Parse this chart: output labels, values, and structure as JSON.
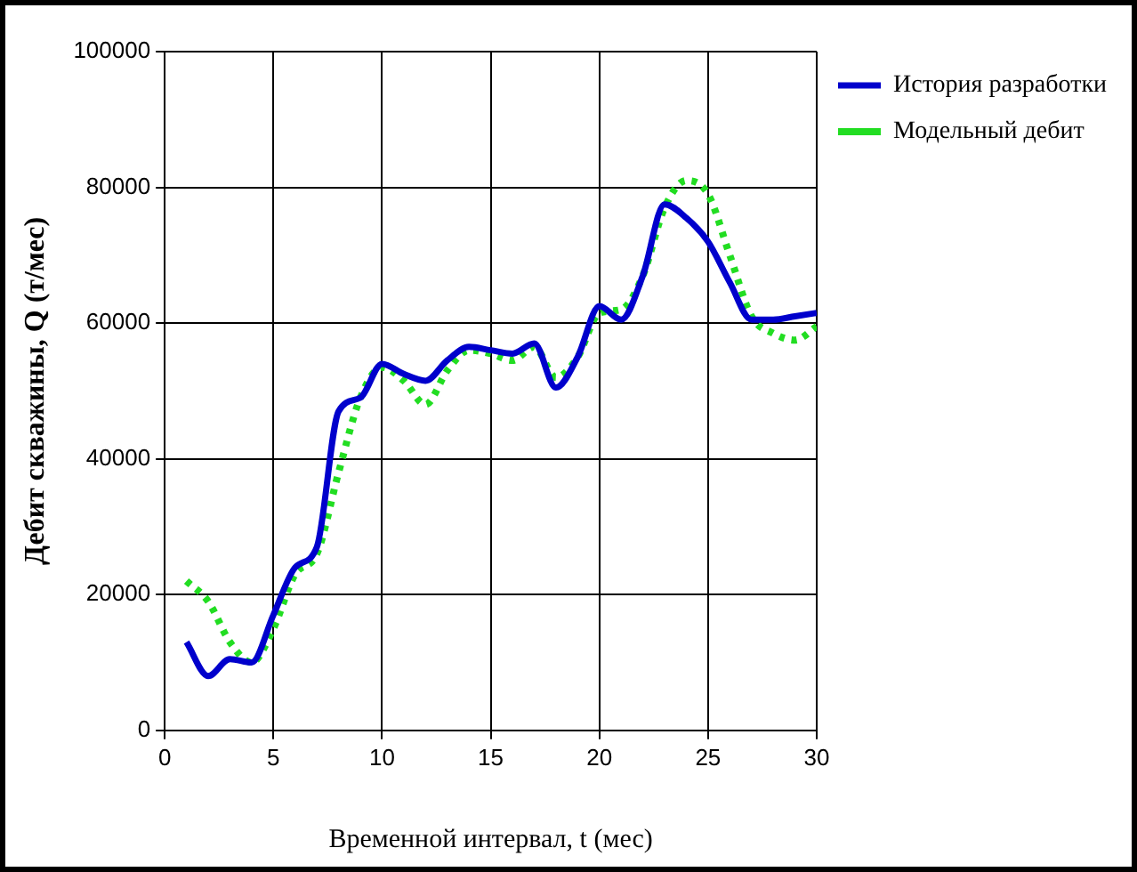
{
  "chart_data": {
    "type": "line",
    "xlabel": "Временной интервал, t (мес)",
    "ylabel": "Дебит скважины, Q (т/мес)",
    "x": [
      1,
      2,
      3,
      4,
      5,
      6,
      7,
      8,
      9,
      10,
      11,
      12,
      13,
      14,
      15,
      16,
      17,
      18,
      19,
      20,
      21,
      22,
      23,
      24,
      25,
      26,
      27,
      28,
      29,
      30
    ],
    "series": [
      {
        "name": "История разработки",
        "color": "#0000cc",
        "line_style": "solid",
        "values": [
          13000,
          8000,
          10500,
          10000,
          17000,
          24000,
          27000,
          47000,
          49000,
          54000,
          52500,
          51500,
          54500,
          56500,
          56000,
          55500,
          57000,
          50500,
          55000,
          62500,
          60500,
          67000,
          77500,
          75500,
          72000,
          66000,
          60500,
          60500,
          61000,
          61500
        ]
      },
      {
        "name": "Модельный дебит",
        "color": "#22dd22",
        "line_style": "dotted",
        "values": [
          22000,
          19000,
          13000,
          10000,
          15000,
          23000,
          26000,
          38000,
          49000,
          53500,
          51500,
          48000,
          53000,
          56000,
          55500,
          54500,
          56500,
          52000,
          55000,
          61500,
          62000,
          67000,
          77000,
          81000,
          79000,
          70000,
          61000,
          58500,
          57500,
          59500
        ]
      }
    ],
    "xlim": [
      0,
      30
    ],
    "xticks": [
      0,
      5,
      10,
      15,
      20,
      25,
      30
    ],
    "ylim": [
      0,
      100000
    ],
    "yticks": [
      0,
      20000,
      40000,
      60000,
      80000,
      100000
    ],
    "grid": true,
    "legend": "top right",
    "marker": "none"
  }
}
